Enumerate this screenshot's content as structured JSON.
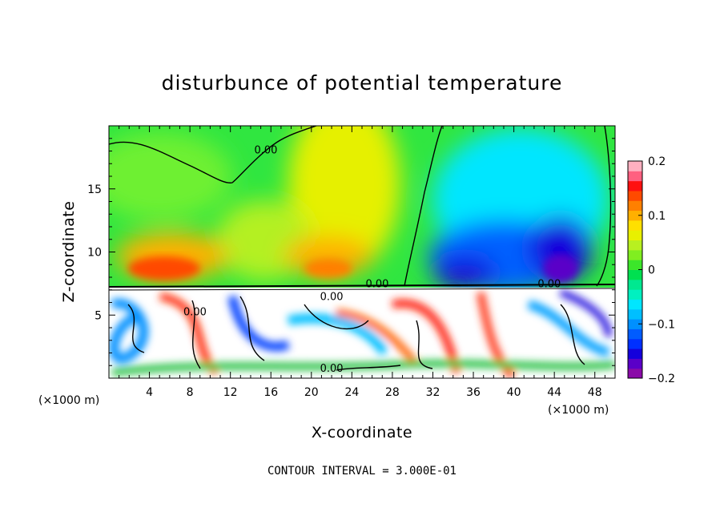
{
  "chart_data": {
    "type": "heatmap",
    "title": "disturbunce of potential temperature",
    "xlabel": "X-coordinate",
    "ylabel": "Z-coordinate",
    "x_unit_left": "(×1000 m)",
    "x_unit_right": "(×1000 m)",
    "xlim": [
      0,
      50
    ],
    "ylim": [
      0,
      20
    ],
    "x_ticks": [
      4,
      8,
      12,
      16,
      20,
      24,
      28,
      32,
      36,
      40,
      44,
      48
    ],
    "y_ticks": [
      5,
      10,
      15
    ],
    "footer": "CONTOUR INTERVAL = 3.000E-01",
    "contour_labels": [
      {
        "text": "0.00",
        "x": 15.5,
        "y": 17.8
      },
      {
        "text": "0.00",
        "x": 26.5,
        "y": 7.2
      },
      {
        "text": "0.00",
        "x": 22.0,
        "y": 6.2
      },
      {
        "text": "0.00",
        "x": 43.5,
        "y": 7.2
      },
      {
        "text": "0.00",
        "x": 22.0,
        "y": 0.5
      },
      {
        "text": "0.00",
        "x": 8.5,
        "y": 5.0
      }
    ],
    "colorbar": {
      "min": -0.2,
      "max": 0.2,
      "tick_labels": [
        "0.2",
        "0.1",
        "0",
        "−0.1",
        "−0.2"
      ],
      "tick_values": [
        0.2,
        0.1,
        0,
        -0.1,
        -0.2
      ],
      "colors": [
        "#8a0aa8",
        "#5a00c8",
        "#1400dc",
        "#0030ff",
        "#005cff",
        "#0090ff",
        "#00bfff",
        "#00e6ff",
        "#00f0c0",
        "#00e890",
        "#00e050",
        "#3ce62a",
        "#80ee20",
        "#b8f020",
        "#e8f000",
        "#ffe000",
        "#ffb000",
        "#ff8000",
        "#ff4a00",
        "#ff1010",
        "#ff6080",
        "#ffb0c0"
      ]
    }
  }
}
